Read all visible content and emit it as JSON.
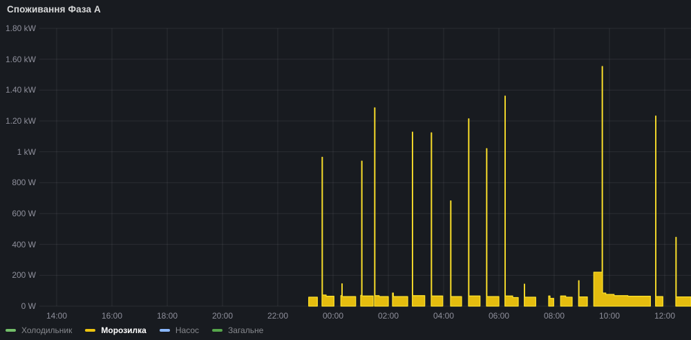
{
  "panel": {
    "title": "Споживання Фаза А"
  },
  "theme": {
    "background": "#181b20",
    "grid_color": "rgba(204,204,220,0.10)",
    "axis_text_color": "rgba(204,204,220,0.65)",
    "title_color": "#d8d9da",
    "legend_dim_color": "#87898e",
    "legend_active_color": "#ffffff"
  },
  "chart_data": {
    "type": "area",
    "title": "Споживання Фаза А",
    "unit": "W",
    "ylim": [
      0,
      1800
    ],
    "x_start": "13:22",
    "x_end": "12:57",
    "grid": true,
    "legend_position": "bottom",
    "x_ticks": [
      "14:00",
      "16:00",
      "18:00",
      "20:00",
      "22:00",
      "00:00",
      "02:00",
      "04:00",
      "06:00",
      "08:00",
      "10:00",
      "12:00"
    ],
    "y_ticks": [
      {
        "label": "1.80 kW",
        "value": 1800
      },
      {
        "label": "1.60 kW",
        "value": 1600
      },
      {
        "label": "1.40 kW",
        "value": 1400
      },
      {
        "label": "1.20 kW",
        "value": 1200
      },
      {
        "label": "1 kW",
        "value": 1000
      },
      {
        "label": "800 W",
        "value": 800
      },
      {
        "label": "600 W",
        "value": 600
      },
      {
        "label": "400 W",
        "value": 400
      },
      {
        "label": "200 W",
        "value": 200
      },
      {
        "label": "0 W",
        "value": 0
      }
    ],
    "series": [
      {
        "name": "Холодильник",
        "color": "#73BF69",
        "stroke": "#73BF69",
        "active": false,
        "segments": []
      },
      {
        "name": "Морозилка",
        "color": "#EDC40F",
        "stroke": "#FADE2A",
        "active": true,
        "segments": [
          [
            [
              "23:07",
              58
            ],
            [
              "23:26",
              0
            ]
          ],
          [
            [
              "23:36",
              965
            ],
            [
              "23:37",
              72
            ],
            [
              "23:45",
              64
            ],
            [
              "00:02",
              0
            ]
          ],
          [
            [
              "00:17",
              68
            ],
            [
              "00:19",
              145
            ],
            [
              "00:20",
              62
            ],
            [
              "00:49",
              0
            ]
          ],
          [
            [
              "01:00",
              70
            ],
            [
              "01:02",
              940
            ],
            [
              "01:03",
              66
            ],
            [
              "01:27",
              0
            ]
          ],
          [
            [
              "01:30",
              1285
            ],
            [
              "01:31",
              68
            ],
            [
              "01:40",
              62
            ],
            [
              "02:00",
              0
            ]
          ],
          [
            [
              "02:09",
              85
            ],
            [
              "02:11",
              62
            ],
            [
              "02:42",
              0
            ]
          ],
          [
            [
              "02:52",
              1128
            ],
            [
              "02:53",
              68
            ],
            [
              "03:19",
              0
            ]
          ],
          [
            [
              "03:33",
              1123
            ],
            [
              "03:34",
              66
            ],
            [
              "03:58",
              0
            ]
          ],
          [
            [
              "04:15",
              682
            ],
            [
              "04:16",
              62
            ],
            [
              "04:39",
              0
            ]
          ],
          [
            [
              "04:54",
              1214
            ],
            [
              "04:55",
              66
            ],
            [
              "05:19",
              0
            ]
          ],
          [
            [
              "05:33",
              1021
            ],
            [
              "05:34",
              62
            ],
            [
              "06:00",
              0
            ]
          ],
          [
            [
              "06:13",
              1361
            ],
            [
              "06:14",
              66
            ],
            [
              "06:30",
              56
            ],
            [
              "06:42",
              0
            ]
          ],
          [
            [
              "06:55",
              143
            ],
            [
              "06:56",
              58
            ],
            [
              "07:20",
              0
            ]
          ],
          [
            [
              "07:48",
              66
            ],
            [
              "07:51",
              50
            ],
            [
              "07:59",
              0
            ]
          ],
          [
            [
              "08:14",
              66
            ],
            [
              "08:25",
              58
            ],
            [
              "08:39",
              0
            ]
          ],
          [
            [
              "08:53",
              165
            ],
            [
              "08:54",
              60
            ],
            [
              "09:12",
              0
            ]
          ],
          [
            [
              "09:26",
              220
            ],
            [
              "09:44",
              1553
            ],
            [
              "09:45",
              85
            ],
            [
              "09:52",
              76
            ],
            [
              "10:10",
              68
            ],
            [
              "10:40",
              64
            ],
            [
              "11:29",
              0
            ]
          ],
          [
            [
              "11:40",
              1232
            ],
            [
              "11:41",
              62
            ],
            [
              "11:56",
              0
            ]
          ],
          [
            [
              "12:24",
              446
            ],
            [
              "12:25",
              60
            ],
            [
              "12:57",
              0
            ]
          ]
        ]
      },
      {
        "name": "Насос",
        "color": "#8AB8FF",
        "stroke": "#8AB8FF",
        "active": false,
        "segments": []
      },
      {
        "name": "Загальне",
        "color": "#56A64B",
        "stroke": "#56A64B",
        "active": false,
        "segments": []
      }
    ]
  }
}
